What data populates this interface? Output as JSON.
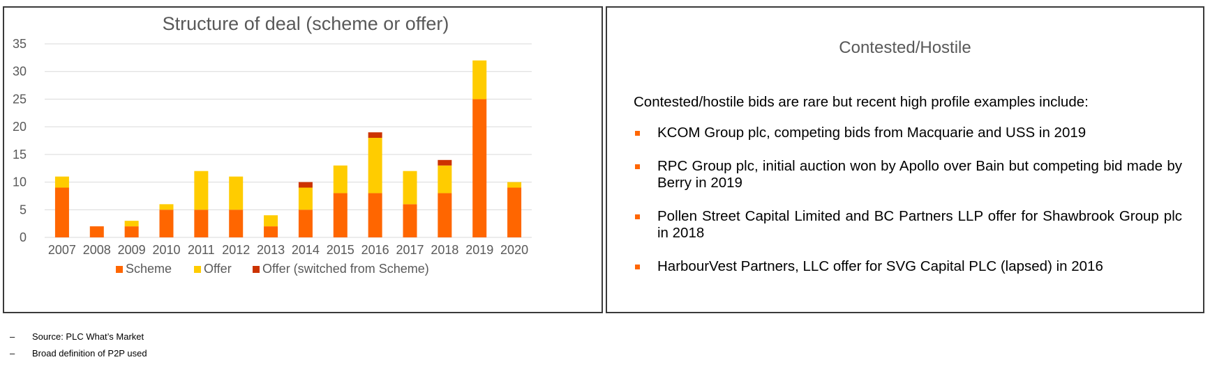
{
  "colors": {
    "scheme": "#ff6600",
    "offer": "#ffcc00",
    "switched": "#cc3300",
    "bullet": "#ff6600"
  },
  "chart_data": {
    "type": "bar",
    "stacked": true,
    "title": "Structure of deal (scheme or offer)",
    "categories": [
      "2007",
      "2008",
      "2009",
      "2010",
      "2011",
      "2012",
      "2013",
      "2014",
      "2015",
      "2016",
      "2017",
      "2018",
      "2019",
      "2020"
    ],
    "series": [
      {
        "name": "Scheme",
        "color": "#ff6600",
        "values": [
          9,
          2,
          2,
          5,
          5,
          5,
          2,
          5,
          8,
          8,
          6,
          8,
          25,
          9
        ]
      },
      {
        "name": "Offer",
        "color": "#ffcc00",
        "values": [
          2,
          0,
          1,
          1,
          7,
          6,
          2,
          4,
          5,
          10,
          6,
          5,
          7,
          1
        ]
      },
      {
        "name": "Offer (switched from Scheme)",
        "color": "#cc3300",
        "values": [
          0,
          0,
          0,
          0,
          0,
          0,
          0,
          1,
          0,
          1,
          0,
          1,
          0,
          0
        ]
      }
    ],
    "ylim": [
      0,
      35
    ],
    "yticks": [
      "0",
      "5",
      "10",
      "15",
      "20",
      "25",
      "30",
      "35"
    ],
    "grid": true,
    "legend_position": "bottom"
  },
  "right_panel": {
    "title": "Contested/Hostile",
    "intro": "Contested/hostile bids are rare but recent high profile examples include:",
    "items": [
      {
        "text": "KCOM Group plc, competing bids from Macquarie and USS in 2019"
      },
      {
        "text": "RPC Group plc, initial auction won by Apollo over Bain but competing bid made by Berry in 2019"
      },
      {
        "text": "Pollen Street Capital Limited and BC Partners LLP offer for Shawbrook Group plc in 2018"
      },
      {
        "text": "HarbourVest Partners, LLC offer for SVG Capital PLC (lapsed) in 2016"
      }
    ]
  },
  "footnotes": {
    "dash": "–",
    "source": "Source: PLC What’s Market",
    "definition": "Broad definition of P2P used"
  }
}
